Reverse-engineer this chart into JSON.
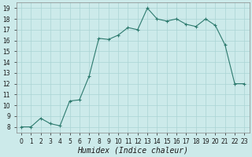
{
  "x": [
    0,
    1,
    2,
    3,
    4,
    5,
    6,
    7,
    8,
    9,
    10,
    11,
    12,
    13,
    14,
    15,
    16,
    17,
    18,
    19,
    20,
    21,
    22,
    23
  ],
  "y": [
    8.0,
    8.0,
    8.8,
    8.3,
    8.1,
    10.4,
    10.5,
    12.7,
    16.2,
    16.1,
    16.5,
    17.2,
    17.0,
    19.0,
    18.0,
    17.8,
    18.0,
    17.5,
    17.3,
    18.0,
    17.4,
    15.6,
    12.0,
    12.0
  ],
  "xlabel": "Humidex (Indice chaleur)",
  "line_color": "#2d7a6e",
  "marker": "+",
  "marker_size": 3,
  "marker_lw": 0.8,
  "line_width": 0.8,
  "bg_color": "#cceaea",
  "grid_color": "#aad4d4",
  "xlim": [
    -0.5,
    23.5
  ],
  "ylim": [
    7.5,
    19.5
  ],
  "yticks": [
    8,
    9,
    10,
    11,
    12,
    13,
    14,
    15,
    16,
    17,
    18,
    19
  ],
  "xticks": [
    0,
    1,
    2,
    3,
    4,
    5,
    6,
    7,
    8,
    9,
    10,
    11,
    12,
    13,
    14,
    15,
    16,
    17,
    18,
    19,
    20,
    21,
    22,
    23
  ],
  "tick_fontsize": 5.5,
  "xlabel_fontsize": 7
}
